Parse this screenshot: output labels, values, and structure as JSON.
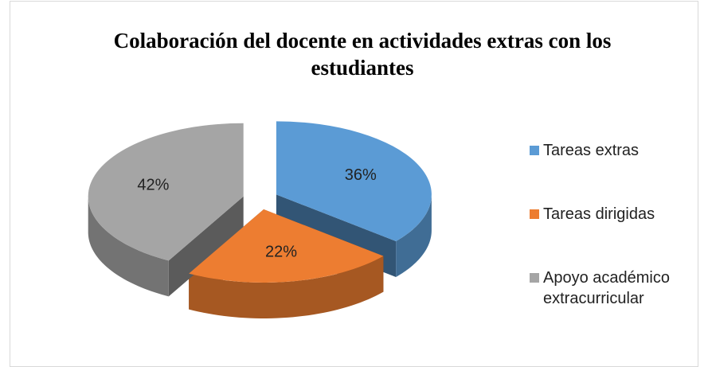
{
  "chart_data": {
    "type": "pie",
    "title": "Colaboración del docente en actividades extras con los estudiantes",
    "categories": [
      "Tareas extras",
      "Tareas dirigidas",
      "Apoyo académico extracurricular"
    ],
    "values": [
      36,
      22,
      42
    ],
    "value_labels": [
      "36%",
      "22%",
      "42%"
    ],
    "colors": [
      "#5b9bd5",
      "#ed7d31",
      "#a5a5a5"
    ],
    "legend": "right"
  }
}
